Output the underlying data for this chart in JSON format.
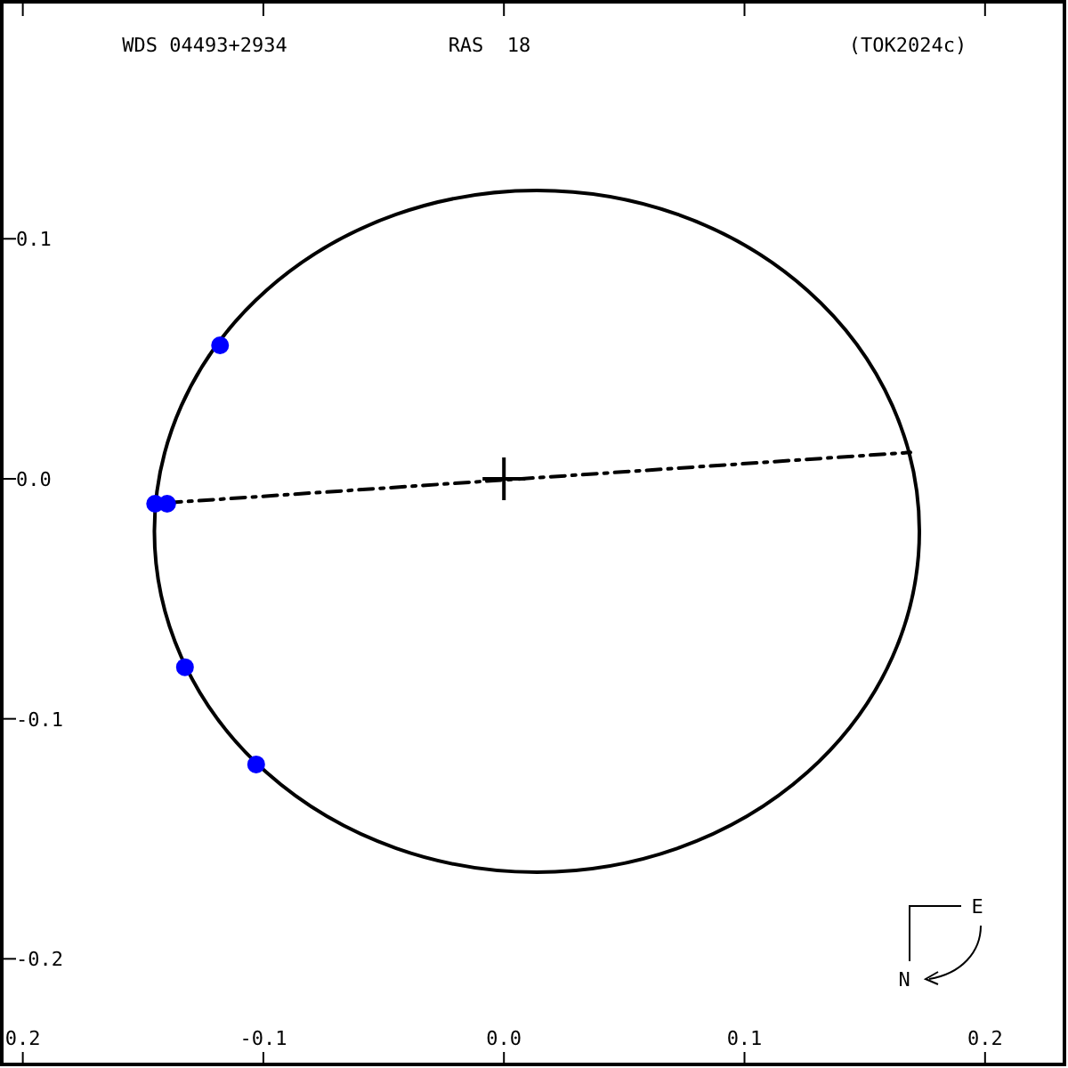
{
  "chart_data": {
    "type": "scatter",
    "title": "WDS 04493+2934",
    "annotations": [
      "RAS  18",
      "(TOK2024c)",
      "E",
      "N"
    ],
    "xlim": [
      -0.208,
      0.233
    ],
    "ylim": [
      -0.244,
      0.198
    ],
    "xticks": [
      {
        "value": -0.2,
        "label": "0.2"
      },
      -0.1,
      {
        "value": 0,
        "label": "0.0"
      },
      0.1,
      0.2
    ],
    "yticks": [
      0.1,
      {
        "value": 0,
        "label": "0.0"
      },
      -0.1,
      -0.2
    ],
    "grid": false,
    "series": [
      {
        "type": "line",
        "color": "#000000",
        "line_style": "dashed",
        "marker": "none",
        "x": [
          -0.14,
          0.169
        ],
        "values": [
          -0.01,
          0.011
        ]
      },
      {
        "color": "#0000ff",
        "marker": "circle",
        "x": [
          -0.145,
          -0.14,
          -0.1326,
          -0.118,
          -0.103
        ],
        "values": [
          -0.0104,
          -0.0104,
          -0.0785,
          0.0556,
          -0.119
        ]
      },
      {
        "color": "#000000",
        "marker": "cross",
        "x": [
          0
        ],
        "values": [
          0
        ]
      }
    ]
  }
}
